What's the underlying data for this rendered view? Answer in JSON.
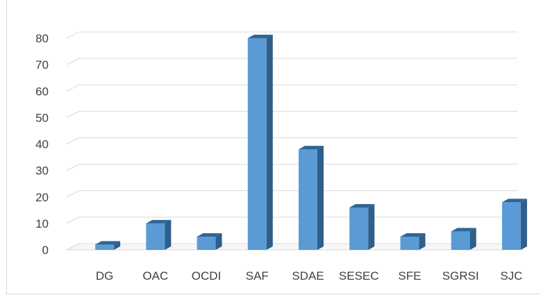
{
  "chart_data": {
    "type": "bar",
    "categories": [
      "DG",
      "OAC",
      "OCDI",
      "SAF",
      "SDAE",
      "SESEC",
      "SFE",
      "SGRSI",
      "SJC"
    ],
    "values": [
      2,
      10,
      5,
      80,
      38,
      16,
      5,
      7,
      18
    ],
    "ylim": [
      0,
      80
    ],
    "yticks": [
      0,
      10,
      20,
      30,
      40,
      50,
      60,
      70,
      80
    ],
    "grid": true,
    "legend": "none",
    "colors": {
      "bar_front": "#5b9bd5",
      "bar_side": "#2e5f8a",
      "bar_top": "#2f6597",
      "grid": "#d9d9d9"
    }
  }
}
